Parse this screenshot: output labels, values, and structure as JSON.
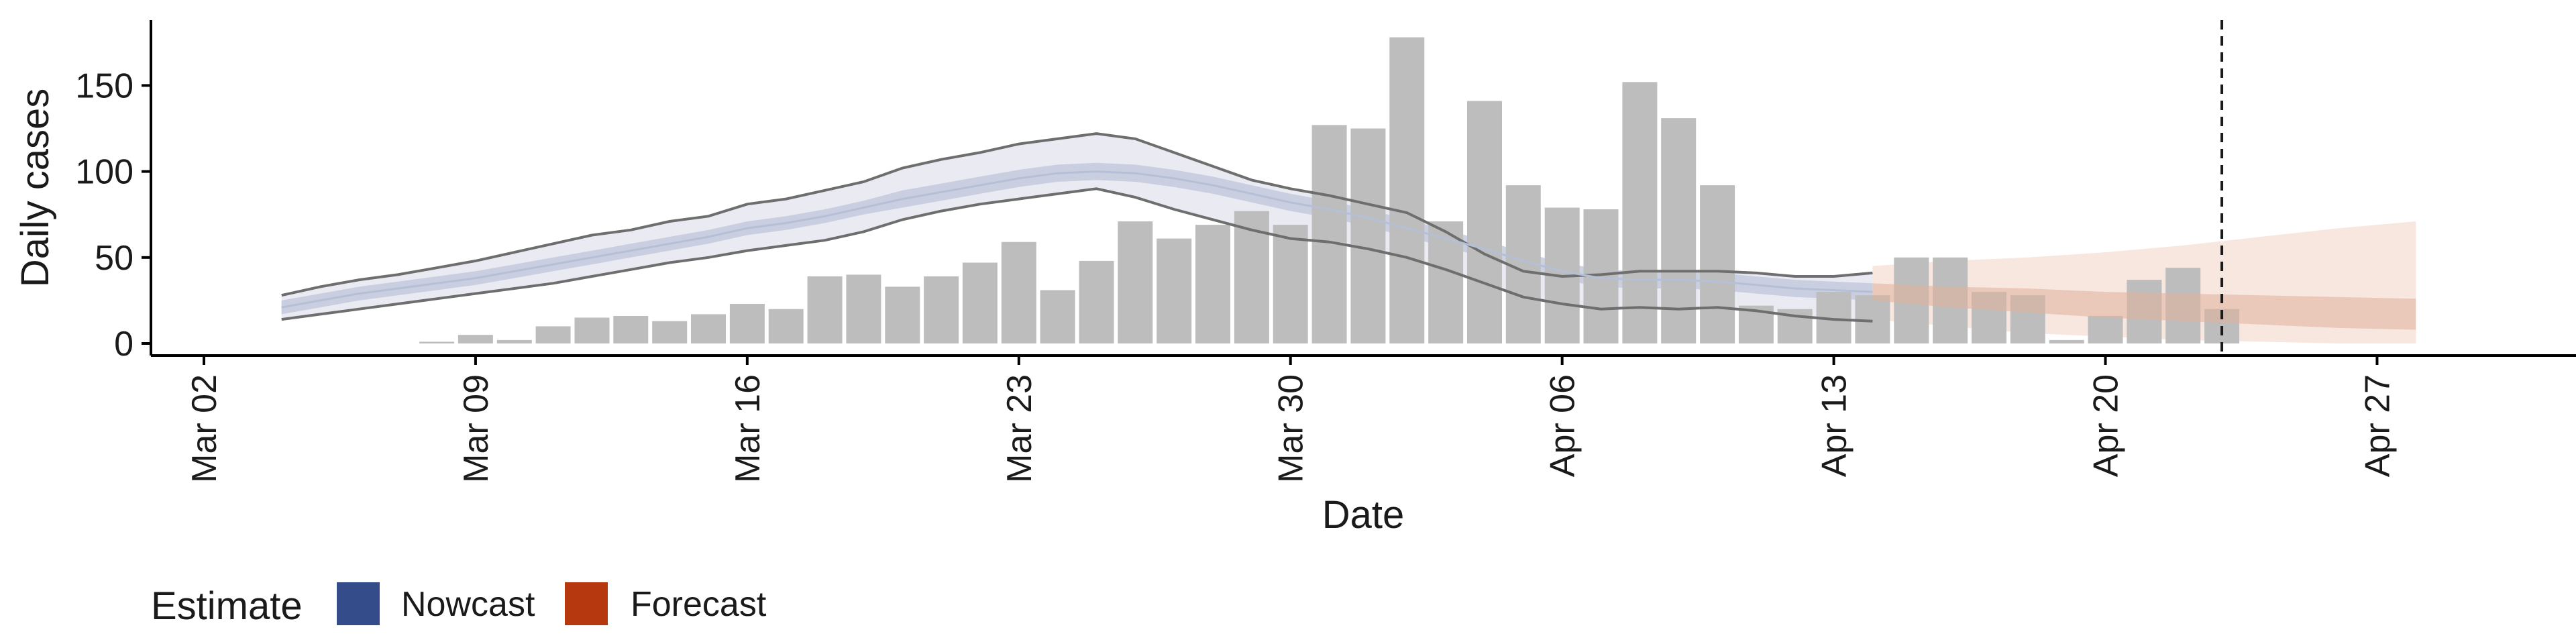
{
  "chart_data": {
    "type": "bar",
    "xlabel": "Date",
    "ylabel": "Daily cases",
    "x_ticks": [
      "Mar 02",
      "Mar 09",
      "Mar 16",
      "Mar 23",
      "Mar 30",
      "Apr 06",
      "Apr 13",
      "Apr 20",
      "Apr 27"
    ],
    "y_ticks": [
      0,
      50,
      100,
      150
    ],
    "xlim": [
      "2020-03-02",
      "2020-04-30"
    ],
    "ylim": [
      -8,
      188
    ],
    "grid": false,
    "legend": {
      "title": "Estimate",
      "placement": "bottom-left",
      "items": [
        {
          "label": "Nowcast",
          "color": "#344d8a"
        },
        {
          "label": "Forecast",
          "color": "#b5380e"
        }
      ]
    },
    "forecast_date": "2020-04-23",
    "bars": {
      "color": "#bdbdbd",
      "dates": [
        "2020-03-08",
        "2020-03-09",
        "2020-03-10",
        "2020-03-11",
        "2020-03-12",
        "2020-03-13",
        "2020-03-14",
        "2020-03-15",
        "2020-03-16",
        "2020-03-17",
        "2020-03-18",
        "2020-03-19",
        "2020-03-20",
        "2020-03-21",
        "2020-03-22",
        "2020-03-23",
        "2020-03-24",
        "2020-03-25",
        "2020-03-26",
        "2020-03-27",
        "2020-03-28",
        "2020-03-29",
        "2020-03-30",
        "2020-03-31",
        "2020-04-01",
        "2020-04-02",
        "2020-04-03",
        "2020-04-04",
        "2020-04-05",
        "2020-04-06",
        "2020-04-07",
        "2020-04-08",
        "2020-04-09",
        "2020-04-10",
        "2020-04-11",
        "2020-04-12",
        "2020-04-13",
        "2020-04-14",
        "2020-04-15",
        "2020-04-16",
        "2020-04-17",
        "2020-04-18",
        "2020-04-19",
        "2020-04-20",
        "2020-04-21",
        "2020-04-22",
        "2020-04-23"
      ],
      "values": [
        1,
        5,
        2,
        10,
        15,
        16,
        13,
        17,
        23,
        20,
        39,
        40,
        33,
        39,
        47,
        59,
        31,
        48,
        71,
        61,
        69,
        77,
        69,
        127,
        125,
        178,
        71,
        141,
        92,
        79,
        78,
        152,
        131,
        92,
        22,
        20,
        30,
        28,
        50,
        50,
        30,
        28,
        2,
        16,
        37,
        44,
        20
      ]
    },
    "series": [
      {
        "name": "Nowcast",
        "color": "#344d8a",
        "dates": [
          "2020-03-04",
          "2020-03-05",
          "2020-03-06",
          "2020-03-07",
          "2020-03-08",
          "2020-03-09",
          "2020-03-10",
          "2020-03-11",
          "2020-03-12",
          "2020-03-13",
          "2020-03-14",
          "2020-03-15",
          "2020-03-16",
          "2020-03-17",
          "2020-03-18",
          "2020-03-19",
          "2020-03-20",
          "2020-03-21",
          "2020-03-22",
          "2020-03-23",
          "2020-03-24",
          "2020-03-25",
          "2020-03-26",
          "2020-03-27",
          "2020-03-28",
          "2020-03-29",
          "2020-03-30",
          "2020-03-31",
          "2020-04-01",
          "2020-04-02",
          "2020-04-03",
          "2020-04-04",
          "2020-04-05",
          "2020-04-06",
          "2020-04-07",
          "2020-04-08",
          "2020-04-09",
          "2020-04-10",
          "2020-04-11",
          "2020-04-12",
          "2020-04-13",
          "2020-04-14"
        ],
        "median": [
          21,
          25,
          29,
          32,
          35,
          38,
          42,
          46,
          50,
          54,
          58,
          62,
          67,
          70,
          74,
          79,
          84,
          88,
          92,
          96,
          99,
          100,
          99,
          96,
          92,
          87,
          82,
          78,
          73,
          67,
          61,
          55,
          48,
          42,
          38,
          37,
          37,
          36,
          34,
          32,
          31,
          30
        ],
        "lower_50": [
          17,
          21,
          25,
          28,
          31,
          34,
          38,
          42,
          46,
          50,
          54,
          58,
          63,
          66,
          70,
          75,
          79,
          83,
          87,
          91,
          94,
          95,
          94,
          91,
          87,
          82,
          77,
          73,
          68,
          62,
          56,
          50,
          43,
          37,
          33,
          32,
          32,
          31,
          29,
          27,
          26,
          25
        ],
        "upper_50": [
          25,
          29,
          33,
          36,
          39,
          42,
          46,
          50,
          54,
          58,
          62,
          66,
          71,
          74,
          78,
          83,
          89,
          93,
          97,
          101,
          104,
          105,
          104,
          101,
          97,
          92,
          87,
          83,
          78,
          72,
          66,
          60,
          53,
          47,
          43,
          42,
          42,
          41,
          39,
          37,
          36,
          35
        ],
        "lower_90": [
          14,
          17,
          20,
          23,
          26,
          29,
          32,
          35,
          39,
          43,
          47,
          50,
          54,
          57,
          60,
          65,
          72,
          77,
          81,
          84,
          87,
          90,
          85,
          78,
          72,
          66,
          61,
          59,
          55,
          50,
          43,
          35,
          27,
          23,
          20,
          21,
          20,
          21,
          19,
          16,
          14,
          13
        ],
        "upper_90": [
          28,
          33,
          37,
          40,
          44,
          48,
          53,
          58,
          63,
          66,
          71,
          74,
          81,
          84,
          89,
          94,
          102,
          107,
          111,
          116,
          119,
          122,
          119,
          111,
          103,
          95,
          90,
          86,
          81,
          76,
          65,
          52,
          42,
          39,
          40,
          42,
          42,
          42,
          41,
          39,
          39,
          41
        ]
      },
      {
        "name": "Forecast",
        "color": "#b5380e",
        "dates": [
          "2020-04-14",
          "2020-04-16",
          "2020-04-18",
          "2020-04-20",
          "2020-04-22",
          "2020-04-24",
          "2020-04-26",
          "2020-04-28"
        ],
        "median": [
          30,
          27,
          25,
          22,
          20,
          18,
          16,
          15
        ],
        "lower_50": [
          25,
          21,
          18,
          15,
          13,
          11,
          9,
          8
        ],
        "upper_50": [
          35,
          33,
          32,
          30,
          29,
          28,
          27,
          26
        ],
        "lower_90": [
          14,
          10,
          6,
          4,
          2,
          1,
          0,
          0
        ],
        "upper_90": [
          45,
          48,
          50,
          53,
          57,
          62,
          67,
          71
        ]
      }
    ]
  }
}
